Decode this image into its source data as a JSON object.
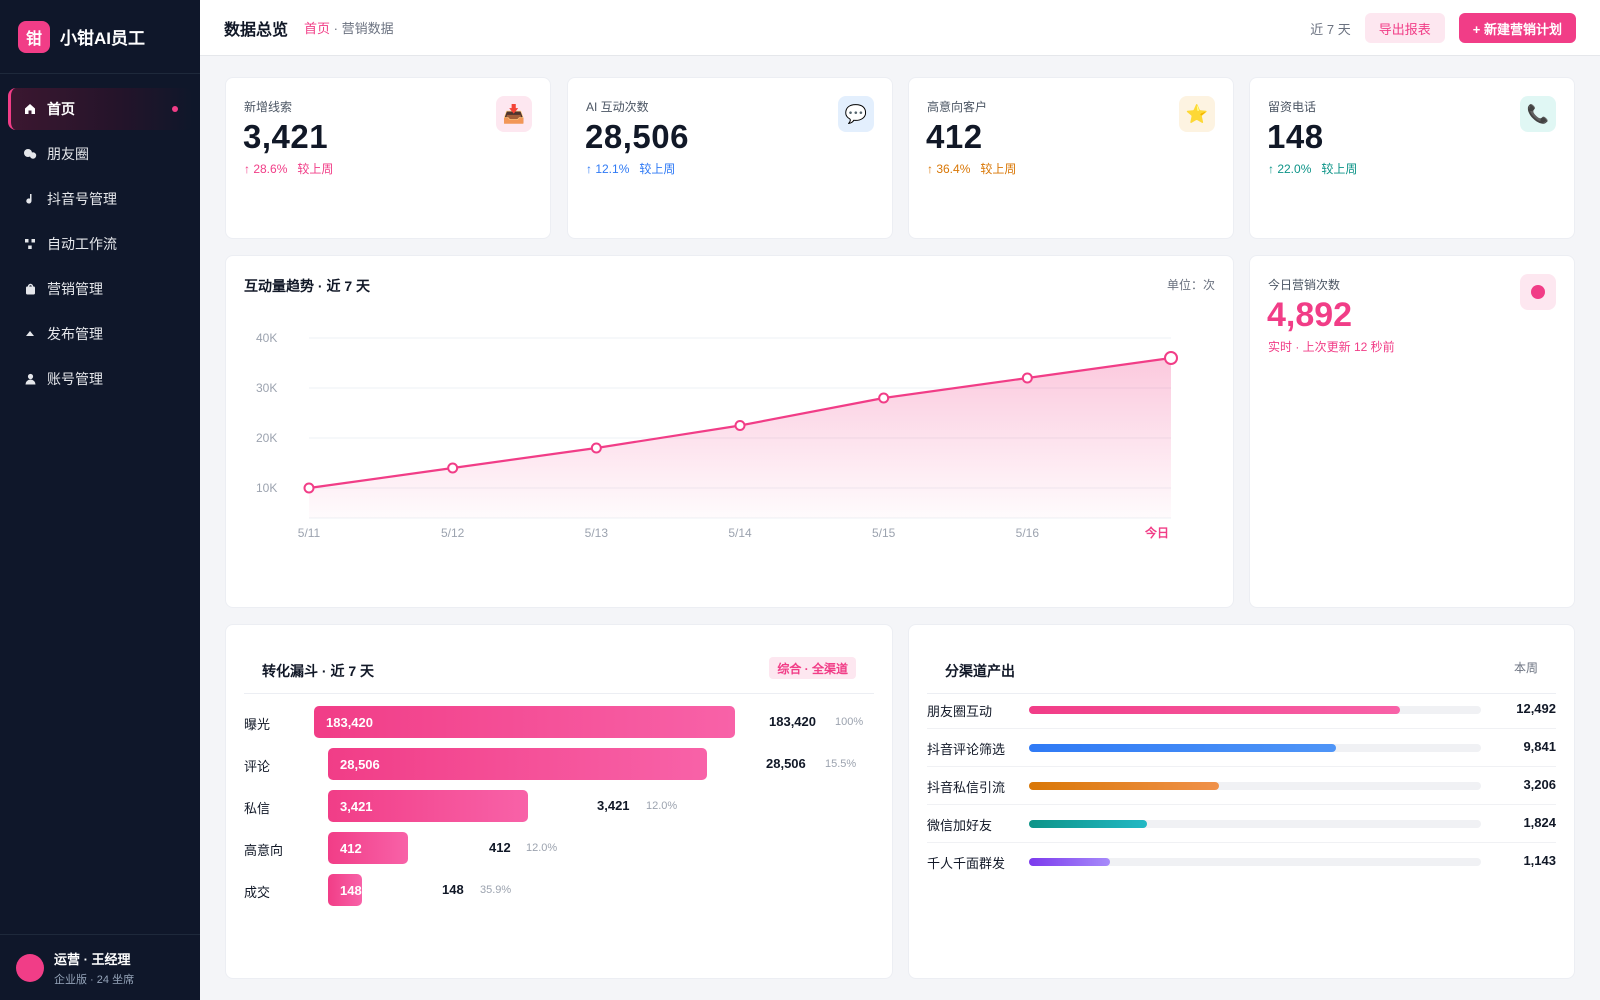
{
  "brand": {
    "logo_char": "钳",
    "name": "小钳AI员工"
  },
  "nav": {
    "items": [
      {
        "label": "首页",
        "icon": "home-icon",
        "active": true
      },
      {
        "label": "朋友圈",
        "icon": "moments-icon"
      },
      {
        "label": "抖音号管理",
        "icon": "douyin-icon"
      },
      {
        "label": "自动工作流",
        "icon": "workflow-icon"
      },
      {
        "label": "营销管理",
        "icon": "bag-icon"
      },
      {
        "label": "发布管理",
        "icon": "publish-icon"
      },
      {
        "label": "账号管理",
        "icon": "user-icon"
      }
    ]
  },
  "user": {
    "name": "运营 · 王经理",
    "plan": "企业版 · 24 坐席"
  },
  "header": {
    "title": "数据总览",
    "crumb_home": "首页",
    "crumb_rest": " · 营销数据",
    "range": "近 7 天",
    "export_label": "导出报表",
    "new_label": "+ 新建营销计划"
  },
  "kpis": [
    {
      "label": "新增线索",
      "value": "3,421",
      "delta": "↑ 28.6%",
      "compare": "较上周",
      "icon": "inbox-icon",
      "glyph": "📥",
      "color": "#f13d87",
      "bg": "#fde7f0"
    },
    {
      "label": "AI 互动次数",
      "value": "28,506",
      "delta": "↑ 12.1%",
      "compare": "较上周",
      "icon": "chat-icon",
      "glyph": "💬",
      "color": "#2f7af5",
      "bg": "#e3effd"
    },
    {
      "label": "高意向客户",
      "value": "412",
      "delta": "↑ 36.4%",
      "compare": "较上周",
      "icon": "star-icon",
      "glyph": "⭐",
      "color": "#d97706",
      "bg": "#fdf3e1"
    },
    {
      "label": "留资电话",
      "value": "148",
      "delta": "↑ 22.0%",
      "compare": "较上周",
      "icon": "phone-icon",
      "glyph": "📞",
      "color": "#0d9488",
      "bg": "#e0f7f4"
    }
  ],
  "trend": {
    "title": "互动量趋势 · 近 7 天",
    "unit": "单位：次"
  },
  "today": {
    "label": "今日营销次数",
    "value": "4,892",
    "sub": "实时 · 上次更新 12 秒前"
  },
  "funnel": {
    "title": "转化漏斗 · 近 7 天",
    "tag": "综合 · 全渠道",
    "rows": [
      {
        "label": "曝光",
        "bar_text": "183,420",
        "value": "183,420",
        "pct": "100%",
        "raw": 183420
      },
      {
        "label": "评论",
        "bar_text": "28,506",
        "value": "28,506",
        "pct": "15.5%",
        "raw": 28506
      },
      {
        "label": "私信",
        "bar_text": "3,421",
        "value": "3,421",
        "pct": "12.0%",
        "raw": 3421
      },
      {
        "label": "高意向",
        "bar_text": "412",
        "value": "412",
        "pct": "12.0%",
        "raw": 412
      },
      {
        "label": "成交",
        "bar_text": "148",
        "value": "148",
        "pct": "35.9%",
        "raw": 148
      }
    ]
  },
  "channels": {
    "title": "分渠道产出",
    "period": "本周",
    "rows": [
      {
        "label": "朋友圈互动",
        "value": "12,492",
        "raw": 12492,
        "fill": 0.82,
        "color_from": "#f13d87",
        "color_to": "#f862a8"
      },
      {
        "label": "抖音评论筛选",
        "value": "9,841",
        "raw": 9841,
        "fill": 0.68,
        "color_from": "#2f7af5",
        "color_to": "#4f95f7"
      },
      {
        "label": "抖音私信引流",
        "value": "3,206",
        "raw": 3206,
        "fill": 0.42,
        "color_from": "#d97706",
        "color_to": "#f0914a"
      },
      {
        "label": "微信加好友",
        "value": "1,824",
        "raw": 1824,
        "fill": 0.26,
        "color_from": "#0d9488",
        "color_to": "#22b8c4"
      },
      {
        "label": "千人千面群发",
        "value": "1,143",
        "raw": 1143,
        "fill": 0.18,
        "color_from": "#7c3aed",
        "color_to": "#a78bfa"
      }
    ]
  },
  "chart_data": {
    "type": "area",
    "title": "互动量趋势 · 近 7 天",
    "ylabel": "单位：次",
    "categories": [
      "5/11",
      "5/12",
      "5/13",
      "5/14",
      "5/15",
      "5/16",
      "今日"
    ],
    "values": [
      10000,
      14000,
      18000,
      22500,
      28000,
      32000,
      36000
    ],
    "yticks": [
      "10K",
      "20K",
      "30K",
      "40K"
    ],
    "ytick_values": [
      10000,
      20000,
      30000,
      40000
    ],
    "ylim": [
      4000,
      40000
    ],
    "color": "#f13d87",
    "grid": true,
    "legend": "none"
  }
}
